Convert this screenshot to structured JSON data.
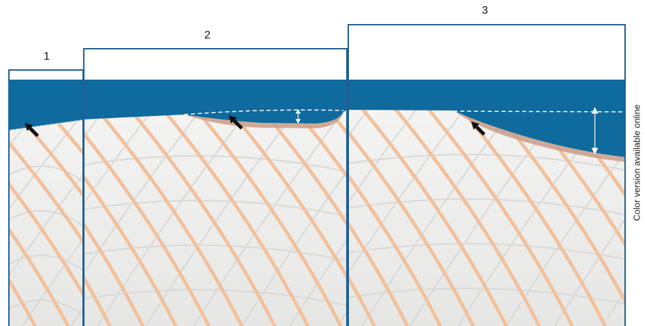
{
  "panels": [
    {
      "label": "1"
    },
    {
      "label": "2"
    },
    {
      "label": "3"
    }
  ],
  "side_note": "Color version available online",
  "colors": {
    "frame": "#1f5f93",
    "blue_band": "#0f6a9e",
    "sheet_base": "#eeeeec",
    "fiber_orange": "#f2c09a",
    "fiber_grey": "#d6d6d6",
    "edge_brown": "#c99c86",
    "arrow": "#111111",
    "dashed": "#ffffff"
  },
  "icons": [
    "arrow-icon",
    "double-arrow-icon"
  ]
}
